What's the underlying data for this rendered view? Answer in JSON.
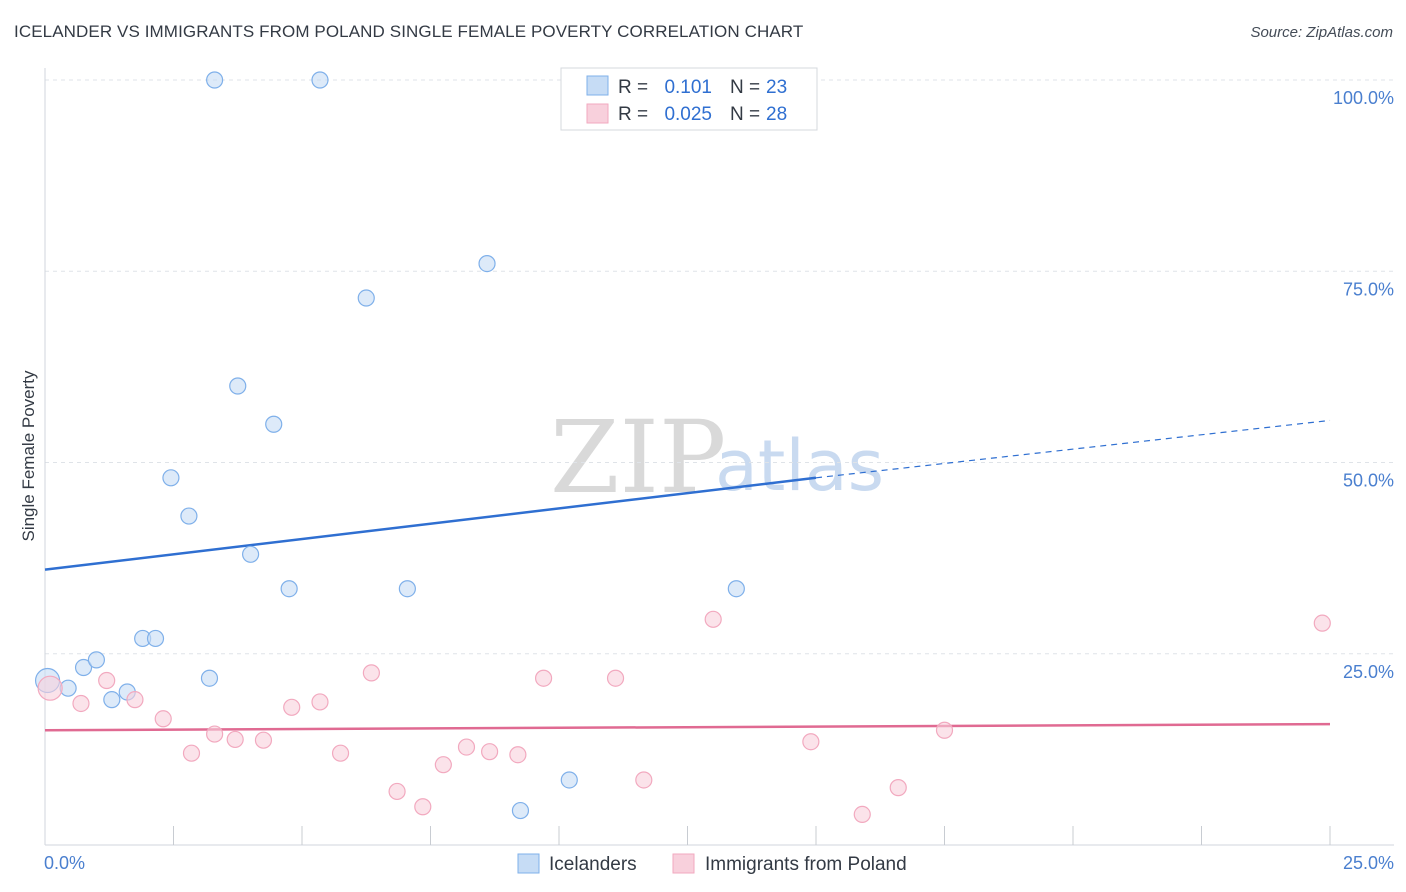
{
  "title": "ICELANDER VS IMMIGRANTS FROM POLAND SINGLE FEMALE POVERTY CORRELATION CHART",
  "source": "Source: ZipAtlas.com",
  "watermark": {
    "zip": "ZIP",
    "atlas": "atlas"
  },
  "legend_top": [
    {
      "r_label": "R =",
      "r_value": "0.101",
      "n_label": "N =",
      "n_value": "23"
    },
    {
      "r_label": "R =",
      "r_value": "0.025",
      "n_label": "N =",
      "n_value": "28"
    }
  ],
  "chart_data": {
    "type": "scatter",
    "title": "ICELANDER VS IMMIGRANTS FROM POLAND SINGLE FEMALE POVERTY CORRELATION CHART",
    "xlabel": "",
    "ylabel": "Single Female Poverty",
    "xlim": [
      0,
      25
    ],
    "ylim": [
      0,
      100
    ],
    "x_ticks": [
      "0.0%",
      "25.0%"
    ],
    "y_ticks": [
      {
        "value": 100,
        "label": "100.0%"
      },
      {
        "value": 75,
        "label": "75.0%"
      },
      {
        "value": 50,
        "label": "50.0%"
      },
      {
        "value": 25,
        "label": "25.0%"
      }
    ],
    "grid": true,
    "legend_position": "bottom-center",
    "series": [
      {
        "name": "Icelanders",
        "color": "#7fb0ea",
        "fill": "#c6dcf5",
        "line_color": "#2f6fd1",
        "r": "0.101",
        "n": "23",
        "points": [
          [
            0.05,
            21.5
          ],
          [
            0.45,
            20.5
          ],
          [
            0.75,
            23.2
          ],
          [
            1.0,
            24.2
          ],
          [
            1.3,
            19.0
          ],
          [
            1.6,
            20.0
          ],
          [
            1.9,
            27.0
          ],
          [
            2.15,
            27.0
          ],
          [
            2.45,
            48.0
          ],
          [
            2.8,
            43.0
          ],
          [
            3.2,
            21.8
          ],
          [
            3.3,
            100.0
          ],
          [
            3.75,
            60.0
          ],
          [
            4.0,
            38.0
          ],
          [
            4.45,
            55.0
          ],
          [
            4.75,
            33.5
          ],
          [
            5.35,
            100.0
          ],
          [
            6.25,
            71.5
          ],
          [
            7.05,
            33.5
          ],
          [
            8.6,
            76.0
          ],
          [
            9.25,
            4.5
          ],
          [
            10.2,
            8.5
          ],
          [
            13.45,
            33.5
          ]
        ],
        "trend": {
          "x_start": 0,
          "y_start": 36.0,
          "x_end": 15.0,
          "y_end": 48.0,
          "dashed_to_x": 25.0,
          "dashed_to_y": 55.5
        }
      },
      {
        "name": "Immigrants from Poland",
        "color": "#f2a9bf",
        "fill": "#f8d0dc",
        "line_color": "#e06a92",
        "r": "0.025",
        "n": "28",
        "points": [
          [
            0.1,
            20.5
          ],
          [
            0.7,
            18.5
          ],
          [
            1.2,
            21.5
          ],
          [
            1.75,
            19.0
          ],
          [
            2.3,
            16.5
          ],
          [
            2.85,
            12.0
          ],
          [
            3.3,
            14.5
          ],
          [
            3.7,
            13.8
          ],
          [
            4.25,
            13.7
          ],
          [
            4.8,
            18.0
          ],
          [
            5.35,
            18.7
          ],
          [
            5.75,
            12.0
          ],
          [
            6.35,
            22.5
          ],
          [
            6.85,
            7.0
          ],
          [
            7.35,
            5.0
          ],
          [
            7.75,
            10.5
          ],
          [
            8.2,
            12.8
          ],
          [
            8.65,
            12.2
          ],
          [
            9.2,
            11.8
          ],
          [
            9.7,
            21.8
          ],
          [
            11.1,
            21.8
          ],
          [
            11.65,
            8.5
          ],
          [
            13.0,
            29.5
          ],
          [
            14.9,
            13.5
          ],
          [
            15.9,
            4.0
          ],
          [
            16.6,
            7.5
          ],
          [
            17.5,
            15.0
          ],
          [
            24.85,
            29.0
          ]
        ],
        "trend": {
          "x_start": 0,
          "y_start": 15.0,
          "x_end": 25.0,
          "y_end": 15.8
        }
      }
    ]
  }
}
